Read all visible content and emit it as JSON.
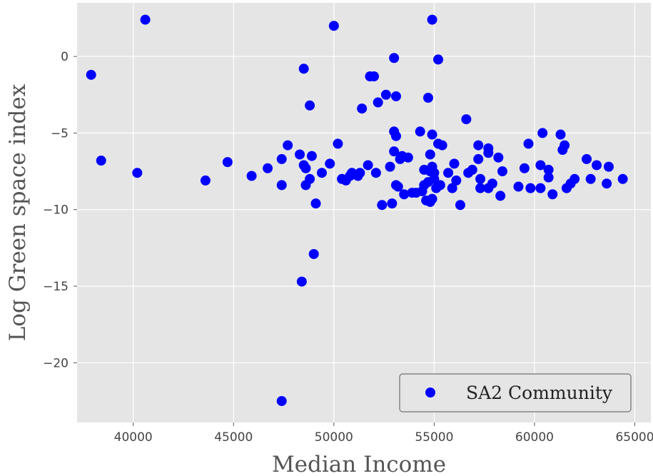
{
  "chart_data": {
    "type": "scatter",
    "xlabel": "Median Income",
    "ylabel": "Log Green space index",
    "xlim": [
      37200,
      65800
    ],
    "ylim": [
      -23.9,
      3.5
    ],
    "xticks": [
      40000,
      45000,
      50000,
      55000,
      60000,
      65000
    ],
    "xtick_labels": [
      "40000",
      "45000",
      "50000",
      "55000",
      "60000",
      "65000"
    ],
    "yticks": [
      0,
      -5,
      -10,
      -15,
      -20
    ],
    "ytick_labels": [
      "0",
      "−5",
      "−10",
      "−15",
      "−20"
    ],
    "grid": true,
    "legend": {
      "position": "bottom-right",
      "entries": [
        "SA2 Community"
      ]
    },
    "colors": {
      "plot_background": "#e5e5e5",
      "grid": "#ffffff",
      "marker": "#0000ff"
    },
    "series": [
      {
        "name": "SA2 Community",
        "color": "#0000ff",
        "points": [
          [
            37900,
            -1.2
          ],
          [
            38400,
            -6.8
          ],
          [
            40200,
            -7.6
          ],
          [
            40600,
            2.4
          ],
          [
            43600,
            -8.1
          ],
          [
            44700,
            -6.9
          ],
          [
            45900,
            -7.8
          ],
          [
            46700,
            -7.3
          ],
          [
            47400,
            -6.7
          ],
          [
            47400,
            -8.4
          ],
          [
            47400,
            -22.5
          ],
          [
            47700,
            -5.8
          ],
          [
            48300,
            -6.4
          ],
          [
            48400,
            -14.7
          ],
          [
            48500,
            -0.8
          ],
          [
            48500,
            -7.1
          ],
          [
            48600,
            -7.3
          ],
          [
            48600,
            -8.4
          ],
          [
            48800,
            -3.2
          ],
          [
            48800,
            -8.0
          ],
          [
            48900,
            -6.5
          ],
          [
            49000,
            -12.9
          ],
          [
            49100,
            -9.6
          ],
          [
            49400,
            -7.6
          ],
          [
            49800,
            -7.0
          ],
          [
            50000,
            2.0
          ],
          [
            50200,
            -5.7
          ],
          [
            50400,
            -8.0
          ],
          [
            50600,
            -8.1
          ],
          [
            50800,
            -7.8
          ],
          [
            50900,
            -7.6
          ],
          [
            51200,
            -7.8
          ],
          [
            51300,
            -7.6
          ],
          [
            51400,
            -3.4
          ],
          [
            51700,
            -7.1
          ],
          [
            51800,
            -1.3
          ],
          [
            52000,
            -1.3
          ],
          [
            52100,
            -7.6
          ],
          [
            52200,
            -3.0
          ],
          [
            52400,
            -9.7
          ],
          [
            52600,
            -2.5
          ],
          [
            52800,
            -7.2
          ],
          [
            52900,
            -9.6
          ],
          [
            53000,
            -0.1
          ],
          [
            53000,
            -4.9
          ],
          [
            53000,
            -6.2
          ],
          [
            53100,
            -2.6
          ],
          [
            53100,
            -5.2
          ],
          [
            53100,
            -8.4
          ],
          [
            53200,
            -8.5
          ],
          [
            53300,
            -6.7
          ],
          [
            53400,
            -6.5
          ],
          [
            53500,
            -9.0
          ],
          [
            53700,
            -6.6
          ],
          [
            53900,
            -8.9
          ],
          [
            54100,
            -8.9
          ],
          [
            54300,
            -4.9
          ],
          [
            54400,
            -8.8
          ],
          [
            54500,
            -7.4
          ],
          [
            54500,
            -8.4
          ],
          [
            54600,
            -9.4
          ],
          [
            54700,
            -2.7
          ],
          [
            54700,
            -8.2
          ],
          [
            54800,
            -6.4
          ],
          [
            54800,
            -7.5
          ],
          [
            54800,
            -9.5
          ],
          [
            54900,
            2.4
          ],
          [
            54900,
            -5.1
          ],
          [
            54900,
            -7.2
          ],
          [
            54900,
            -9.3
          ],
          [
            55000,
            -7.6
          ],
          [
            55000,
            -8.0
          ],
          [
            55100,
            -8.6
          ],
          [
            55200,
            -5.7
          ],
          [
            55200,
            -0.2
          ],
          [
            55300,
            -8.4
          ],
          [
            55400,
            -5.8
          ],
          [
            55700,
            -7.6
          ],
          [
            55900,
            -8.6
          ],
          [
            56000,
            -7.0
          ],
          [
            56100,
            -8.1
          ],
          [
            56300,
            -9.7
          ],
          [
            56600,
            -4.1
          ],
          [
            56700,
            -7.6
          ],
          [
            56900,
            -7.4
          ],
          [
            57200,
            -5.8
          ],
          [
            57200,
            -6.7
          ],
          [
            57300,
            -8.6
          ],
          [
            57300,
            -8.0
          ],
          [
            57700,
            -8.6
          ],
          [
            57700,
            -6.3
          ],
          [
            57700,
            -6.0
          ],
          [
            57900,
            -8.3
          ],
          [
            58200,
            -6.6
          ],
          [
            58300,
            -9.1
          ],
          [
            58400,
            -7.5
          ],
          [
            59200,
            -8.5
          ],
          [
            59500,
            -7.3
          ],
          [
            59700,
            -5.7
          ],
          [
            59800,
            -8.6
          ],
          [
            60300,
            -8.6
          ],
          [
            60300,
            -7.1
          ],
          [
            60400,
            -5.0
          ],
          [
            60700,
            -7.4
          ],
          [
            60700,
            -7.9
          ],
          [
            60900,
            -9.0
          ],
          [
            61300,
            -5.1
          ],
          [
            61400,
            -6.1
          ],
          [
            61500,
            -5.8
          ],
          [
            61600,
            -8.6
          ],
          [
            61800,
            -8.3
          ],
          [
            62000,
            -8.0
          ],
          [
            62600,
            -6.7
          ],
          [
            62800,
            -8.0
          ],
          [
            63100,
            -7.1
          ],
          [
            63600,
            -8.3
          ],
          [
            63700,
            -7.2
          ],
          [
            64400,
            -8.0
          ]
        ]
      }
    ]
  }
}
